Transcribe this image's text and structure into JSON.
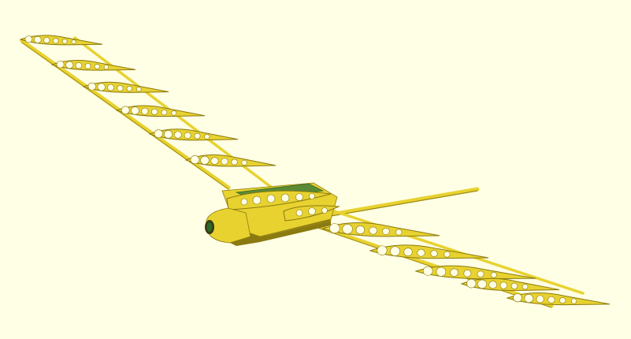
{
  "viewport": {
    "background": "#ffffe5"
  },
  "model": {
    "kind": "rc-glider-airframe",
    "rib_color": "#e8d230",
    "rib_shadow_color": "#8a7a10",
    "hole_color": "#ffffe5",
    "spar_color": "#e8d230",
    "spar_shadow_color": "#9c8a16",
    "cover_color": "#5a8a35",
    "pod_color": "#e8d230",
    "ribs_per_wing_visible": 6
  }
}
